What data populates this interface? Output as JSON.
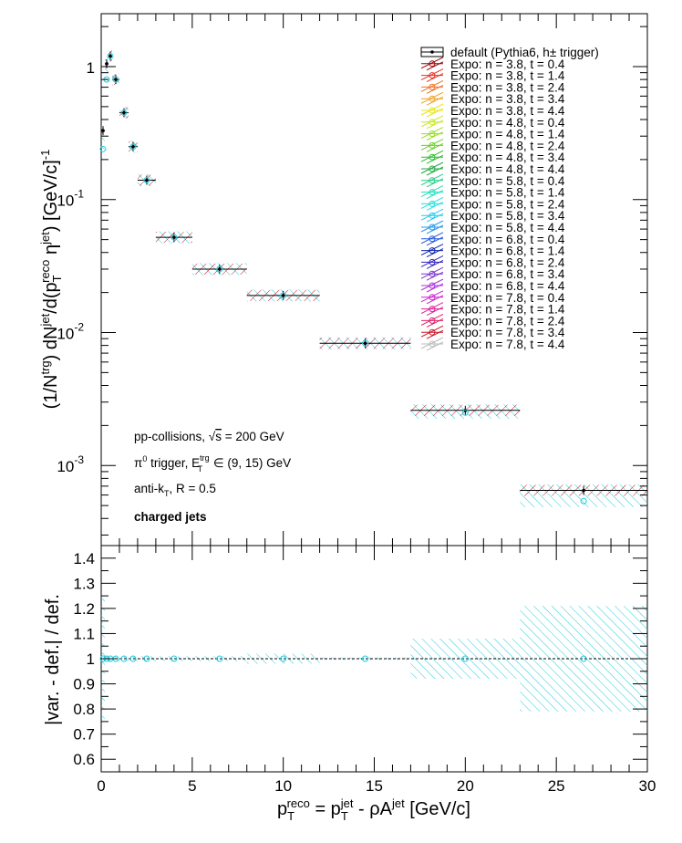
{
  "chart_data": [
    {
      "type": "scatter",
      "panel": "top",
      "ylabel_parts": [
        "(1/N",
        "trg",
        ") dN",
        "jet",
        "/d(p",
        "T",
        "reco",
        " η",
        "jet",
        ") [GeV/c]",
        "-1"
      ],
      "yscale": "log",
      "xlim": [
        0,
        30
      ],
      "ylim": [
        0.00025,
        2.5
      ],
      "x_ticks": [
        0,
        5,
        10,
        15,
        20,
        25,
        30
      ],
      "y_tick_labels": [
        {
          "value": 0.001,
          "base": "10",
          "exp": "-3"
        },
        {
          "value": 0.01,
          "base": "10",
          "exp": "-2"
        },
        {
          "value": 0.1,
          "base": "10",
          "exp": "-1"
        },
        {
          "value": 1,
          "base": "1",
          "exp": ""
        }
      ],
      "annotations": [
        "pp-collisions, √s = 200 GeV",
        "π0 trigger, ETtrg ∈ (9, 15) GeV",
        "anti-kT, R = 0.5",
        "charged jets"
      ],
      "bins": [
        {
          "xlo": 0.0,
          "xhi": 0.2,
          "x": 0.1,
          "y": 0.33,
          "var_y": 0.24
        },
        {
          "xlo": 0.2,
          "xhi": 0.4,
          "x": 0.3,
          "y": 1.05,
          "var_y": 0.8
        },
        {
          "xlo": 0.4,
          "xhi": 0.6,
          "x": 0.5,
          "y": 1.2,
          "var_y": 1.2
        },
        {
          "xlo": 0.6,
          "xhi": 1.0,
          "x": 0.8,
          "y": 0.8,
          "var_y": 0.8
        },
        {
          "xlo": 1.0,
          "xhi": 1.5,
          "x": 1.25,
          "y": 0.45,
          "var_y": 0.45
        },
        {
          "xlo": 1.5,
          "xhi": 2.0,
          "x": 1.75,
          "y": 0.25,
          "var_y": 0.25
        },
        {
          "xlo": 2.0,
          "xhi": 3.0,
          "x": 2.5,
          "y": 0.14,
          "var_y": 0.14
        },
        {
          "xlo": 3.0,
          "xhi": 5.0,
          "x": 4.0,
          "y": 0.052,
          "var_y": 0.052
        },
        {
          "xlo": 5.0,
          "xhi": 8.0,
          "x": 6.5,
          "y": 0.03,
          "var_y": 0.03
        },
        {
          "xlo": 8.0,
          "xhi": 12.0,
          "x": 10.0,
          "y": 0.019,
          "var_y": 0.019
        },
        {
          "xlo": 12.0,
          "xhi": 17.0,
          "x": 14.5,
          "y": 0.0083,
          "var_y": 0.0083
        },
        {
          "xlo": 17.0,
          "xhi": 23.0,
          "x": 20.0,
          "y": 0.0026,
          "var_y": 0.0025
        },
        {
          "xlo": 23.0,
          "xhi": 30.0,
          "x": 26.5,
          "y": 0.00065,
          "var_y": 0.00054
        }
      ],
      "legend_position": "top-right",
      "legend": [
        {
          "label": "default (Pythia6, h± trigger)",
          "color": "#000000"
        },
        {
          "label": "Expo: n = 3.8, t = 0.4",
          "color": "#990000"
        },
        {
          "label": "Expo: n = 3.8, t = 1.4",
          "color": "#e8301e"
        },
        {
          "label": "Expo: n = 3.8, t = 2.4",
          "color": "#f07020"
        },
        {
          "label": "Expo: n = 3.8, t = 3.4",
          "color": "#f0a020"
        },
        {
          "label": "Expo: n = 3.8, t = 4.4",
          "color": "#e6e620"
        },
        {
          "label": "Expo: n = 4.8, t = 0.4",
          "color": "#c8e620"
        },
        {
          "label": "Expo: n = 4.8, t = 1.4",
          "color": "#99dd22"
        },
        {
          "label": "Expo: n = 4.8, t = 2.4",
          "color": "#66d022"
        },
        {
          "label": "Expo: n = 4.8, t = 3.4",
          "color": "#22c022"
        },
        {
          "label": "Expo: n = 4.8, t = 4.4",
          "color": "#22aa44"
        },
        {
          "label": "Expo: n = 5.8, t = 0.4",
          "color": "#22cc88"
        },
        {
          "label": "Expo: n = 5.8, t = 1.4",
          "color": "#22ddbb"
        },
        {
          "label": "Expo: n = 5.8, t = 2.4",
          "color": "#22e0e0"
        },
        {
          "label": "Expo: n = 5.8, t = 3.4",
          "color": "#22c8f0"
        },
        {
          "label": "Expo: n = 5.8, t = 4.4",
          "color": "#2299ee"
        },
        {
          "label": "Expo: n = 6.8, t = 0.4",
          "color": "#2255dd"
        },
        {
          "label": "Expo: n = 6.8, t = 1.4",
          "color": "#1122aa"
        },
        {
          "label": "Expo: n = 6.8, t = 2.4",
          "color": "#3322bb"
        },
        {
          "label": "Expo: n = 6.8, t = 3.4",
          "color": "#7733cc"
        },
        {
          "label": "Expo: n = 6.8, t = 4.4",
          "color": "#aa33dd"
        },
        {
          "label": "Expo: n = 7.8, t = 0.4",
          "color": "#cc22cc"
        },
        {
          "label": "Expo: n = 7.8, t = 1.4",
          "color": "#dd2299"
        },
        {
          "label": "Expo: n = 7.8, t = 2.4",
          "color": "#dd2266"
        },
        {
          "label": "Expo: n = 7.8, t = 3.4",
          "color": "#cc1122"
        },
        {
          "label": "Expo: n = 7.8, t = 4.4",
          "color": "#bbbbbb"
        }
      ]
    },
    {
      "type": "scatter",
      "panel": "bottom",
      "ylabel": "|var. - def.| / def.",
      "xlabel_parts": [
        "p",
        "T",
        "reco",
        " = p",
        "T",
        "jet",
        " - ρA",
        "jet",
        " [GeV/c]"
      ],
      "xlim": [
        0,
        30
      ],
      "ylim": [
        0.55,
        1.45
      ],
      "y_ticks": [
        0.6,
        0.7,
        0.8,
        0.9,
        1,
        1.1,
        1.2,
        1.3,
        1.4
      ],
      "y_tick_labels": [
        "0.6",
        "0.7",
        "0.8",
        "0.9",
        "1",
        "1.1",
        "1.2",
        "1.3",
        "1.4"
      ],
      "x_ticks": [
        0,
        5,
        10,
        15,
        20,
        25,
        30
      ],
      "reference_line": 1,
      "ratio_bins": [
        {
          "xlo": 0.0,
          "xhi": 0.2,
          "x": 0.1,
          "y": 1.0,
          "band": 0.26
        },
        {
          "xlo": 0.2,
          "xhi": 0.4,
          "x": 0.3,
          "y": 1.0,
          "band": 0.02
        },
        {
          "xlo": 0.4,
          "xhi": 0.6,
          "x": 0.5,
          "y": 1.0,
          "band": 0.01
        },
        {
          "xlo": 0.6,
          "xhi": 1.0,
          "x": 0.8,
          "y": 1.0,
          "band": 0.01
        },
        {
          "xlo": 1.0,
          "xhi": 1.5,
          "x": 1.25,
          "y": 1.0,
          "band": 0.01
        },
        {
          "xlo": 1.5,
          "xhi": 2.0,
          "x": 1.75,
          "y": 1.0,
          "band": 0.01
        },
        {
          "xlo": 2.0,
          "xhi": 3.0,
          "x": 2.5,
          "y": 1.0,
          "band": 0.01
        },
        {
          "xlo": 3.0,
          "xhi": 5.0,
          "x": 4.0,
          "y": 1.0,
          "band": 0.01
        },
        {
          "xlo": 5.0,
          "xhi": 8.0,
          "x": 6.5,
          "y": 1.0,
          "band": 0.01
        },
        {
          "xlo": 8.0,
          "xhi": 12.0,
          "x": 10.0,
          "y": 1.0,
          "band": 0.02
        },
        {
          "xlo": 12.0,
          "xhi": 17.0,
          "x": 14.5,
          "y": 1.0,
          "band": 0.005
        },
        {
          "xlo": 17.0,
          "xhi": 23.0,
          "x": 20.0,
          "y": 1.0,
          "band": 0.08
        },
        {
          "xlo": 23.0,
          "xhi": 30.0,
          "x": 26.5,
          "y": 1.0,
          "band": 0.21
        }
      ]
    }
  ]
}
